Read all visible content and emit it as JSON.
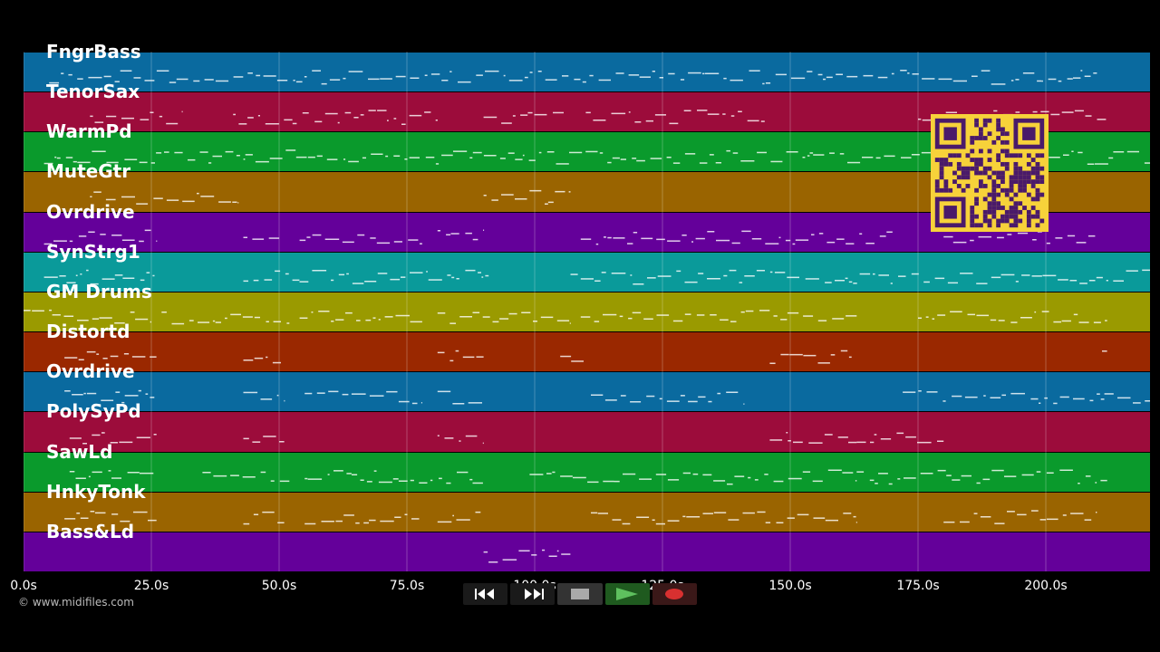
{
  "tracks": [
    {
      "label": "FngrBass",
      "color": "#0a6a9f"
    },
    {
      "label": "TenorSax",
      "color": "#9c0c3b"
    },
    {
      "label": "WarmPd",
      "color": "#0a9a2c"
    },
    {
      "label": "MuteGtr",
      "color": "#9a6400"
    },
    {
      "label": "Ovrdrive",
      "color": "#64009a"
    },
    {
      "label": "SynStrg1",
      "color": "#0a9a9a"
    },
    {
      "label": "GM Drums",
      "color": "#9a9a00"
    },
    {
      "label": "Distortd",
      "color": "#9a2800"
    },
    {
      "label": "Ovrdrive",
      "color": "#0a6a9f"
    },
    {
      "label": "PolySyPd",
      "color": "#9c0c3b"
    },
    {
      "label": "SawLd",
      "color": "#0a9a2c"
    },
    {
      "label": "HnkyTonk",
      "color": "#9a6400"
    },
    {
      "label": "Bass&Ld",
      "color": "#64009a"
    }
  ],
  "timeline": {
    "ticks": [
      "0.0s",
      "25.0s",
      "50.0s",
      "75.0s",
      "100.0s",
      "125.0s",
      "150.0s",
      "175.0s",
      "200.0s"
    ],
    "tick_values": [
      0,
      25,
      50,
      75,
      100,
      125,
      150,
      175,
      200
    ],
    "duration": 220.5
  },
  "copyright": "© www.midifiles.com",
  "transport": {
    "rewind_icon": "rewind-icon",
    "fast_forward_icon": "fast-forward-icon",
    "stop_icon": "stop-icon",
    "play_icon": "play-icon",
    "record_icon": "record-icon"
  },
  "qr_code": {
    "color": "#f7d23a",
    "module_color": "#4a1a6a"
  }
}
